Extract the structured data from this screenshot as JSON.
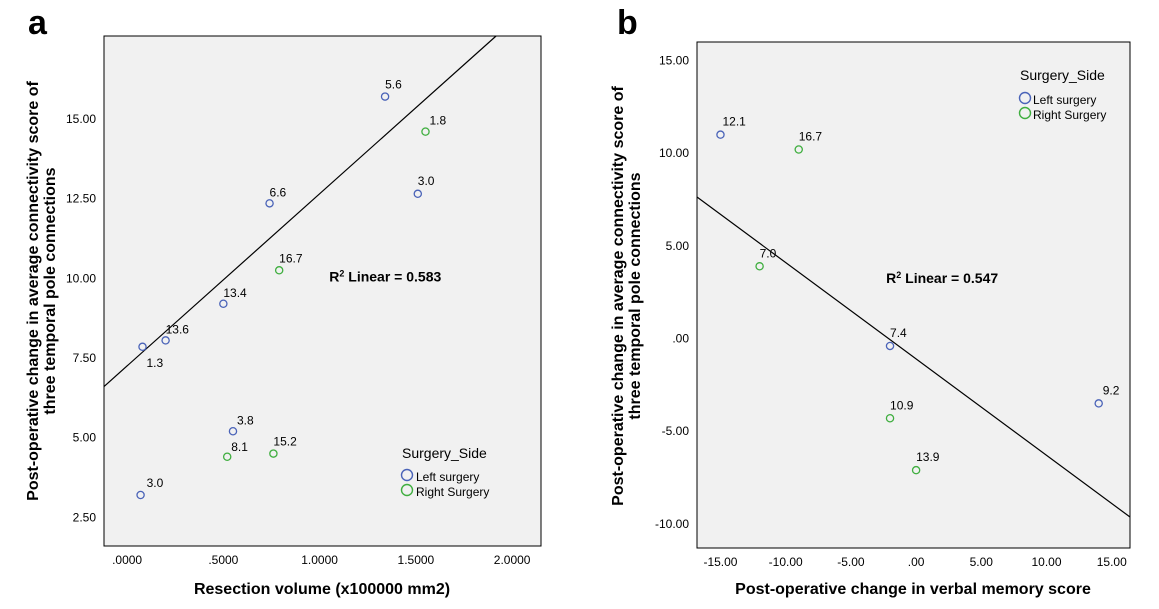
{
  "chart_data": [
    {
      "type": "scatter",
      "panel_label": "a",
      "xlabel": "Resection volume (x100000 mm2)",
      "ylabel_line1": "Post-operative change in average connectivity score of",
      "ylabel_line2": "three temporal pole connections",
      "xlim": [
        -0.12,
        2.15
      ],
      "ylim": [
        1.6,
        17.6
      ],
      "x_ticks": [
        0,
        0.5,
        1.0,
        1.5,
        2.0
      ],
      "x_tick_labels": [
        ".0000",
        ".5000",
        "1.0000",
        "1.5000",
        "2.0000"
      ],
      "y_ticks": [
        2.5,
        5.0,
        7.5,
        10.0,
        12.5,
        15.0
      ],
      "y_tick_labels": [
        "2.50",
        "5.00",
        "7.50",
        "10.00",
        "12.50",
        "15.00"
      ],
      "fit_line": {
        "intercept": 7.25,
        "slope": 5.4,
        "label_prefix": "R",
        "label_suffix": " Linear = 0.583",
        "label_sup": "2",
        "label_x": 1.05,
        "label_y": 9.9
      },
      "legend": {
        "title": "Surgery_Side",
        "items": [
          "Left surgery",
          "Right Surgery"
        ],
        "position": "bottom-right"
      },
      "series": [
        {
          "name": "Left surgery",
          "color": "#4a63b8",
          "points": [
            {
              "x": 0.07,
              "y": 3.2,
              "label": "3.0"
            },
            {
              "x": 0.08,
              "y": 7.85,
              "label": "1.3"
            },
            {
              "x": 0.2,
              "y": 8.05,
              "label": "13.6"
            },
            {
              "x": 0.5,
              "y": 9.2,
              "label": "13.4"
            },
            {
              "x": 0.55,
              "y": 5.2,
              "label": "3.8"
            },
            {
              "x": 0.74,
              "y": 12.35,
              "label": "6.6"
            },
            {
              "x": 1.34,
              "y": 15.7,
              "label": "5.6"
            },
            {
              "x": 1.51,
              "y": 12.65,
              "label": "3.0"
            }
          ]
        },
        {
          "name": "Right Surgery",
          "color": "#3fae3f",
          "points": [
            {
              "x": 0.52,
              "y": 4.4,
              "label": "8.1"
            },
            {
              "x": 0.76,
              "y": 4.5,
              "label": "15.2"
            },
            {
              "x": 0.79,
              "y": 10.25,
              "label": "16.7"
            },
            {
              "x": 1.55,
              "y": 14.6,
              "label": "1.8"
            }
          ]
        }
      ]
    },
    {
      "type": "scatter",
      "panel_label": "b",
      "xlabel": "Post-operative change in verbal memory score",
      "ylabel_line1": "Post-operative change in average connectivity score of",
      "ylabel_line2": "three temporal pole connections",
      "xlim": [
        -16.8,
        16.4
      ],
      "ylim": [
        -11.3,
        16.0
      ],
      "x_ticks": [
        -15,
        -10,
        -5,
        0,
        5,
        10,
        15
      ],
      "x_tick_labels": [
        "-15.00",
        "-10.00",
        "-5.00",
        ".00",
        "5.00",
        "10.00",
        "15.00"
      ],
      "y_ticks": [
        -10,
        -5,
        0,
        5,
        10,
        15
      ],
      "y_tick_labels": [
        "-10.00",
        "-5.00",
        ".00",
        "5.00",
        "10.00",
        "15.00"
      ],
      "fit_line": {
        "intercept": -1.1,
        "slope": -0.52,
        "label_prefix": "R",
        "label_suffix": " Linear = 0.547",
        "label_sup": "2",
        "label_x": -2.3,
        "label_y": 3.0
      },
      "legend": {
        "title": "Surgery_Side",
        "items": [
          "Left surgery",
          "Right Surgery"
        ],
        "position": "top-right"
      },
      "series": [
        {
          "name": "Left surgery",
          "color": "#4a63b8",
          "points": [
            {
              "x": -15.0,
              "y": 11.0,
              "label": "12.1"
            },
            {
              "x": -2.0,
              "y": -0.4,
              "label": "7.4"
            },
            {
              "x": 14.0,
              "y": -3.5,
              "label": "9.2"
            }
          ]
        },
        {
          "name": "Right Surgery",
          "color": "#3fae3f",
          "points": [
            {
              "x": -9.0,
              "y": 10.2,
              "label": "16.7"
            },
            {
              "x": -12.0,
              "y": 3.9,
              "label": "7.0"
            },
            {
              "x": -2.0,
              "y": -4.3,
              "label": "10.9"
            },
            {
              "x": 0.0,
              "y": -7.1,
              "label": "13.9"
            }
          ]
        }
      ]
    }
  ]
}
